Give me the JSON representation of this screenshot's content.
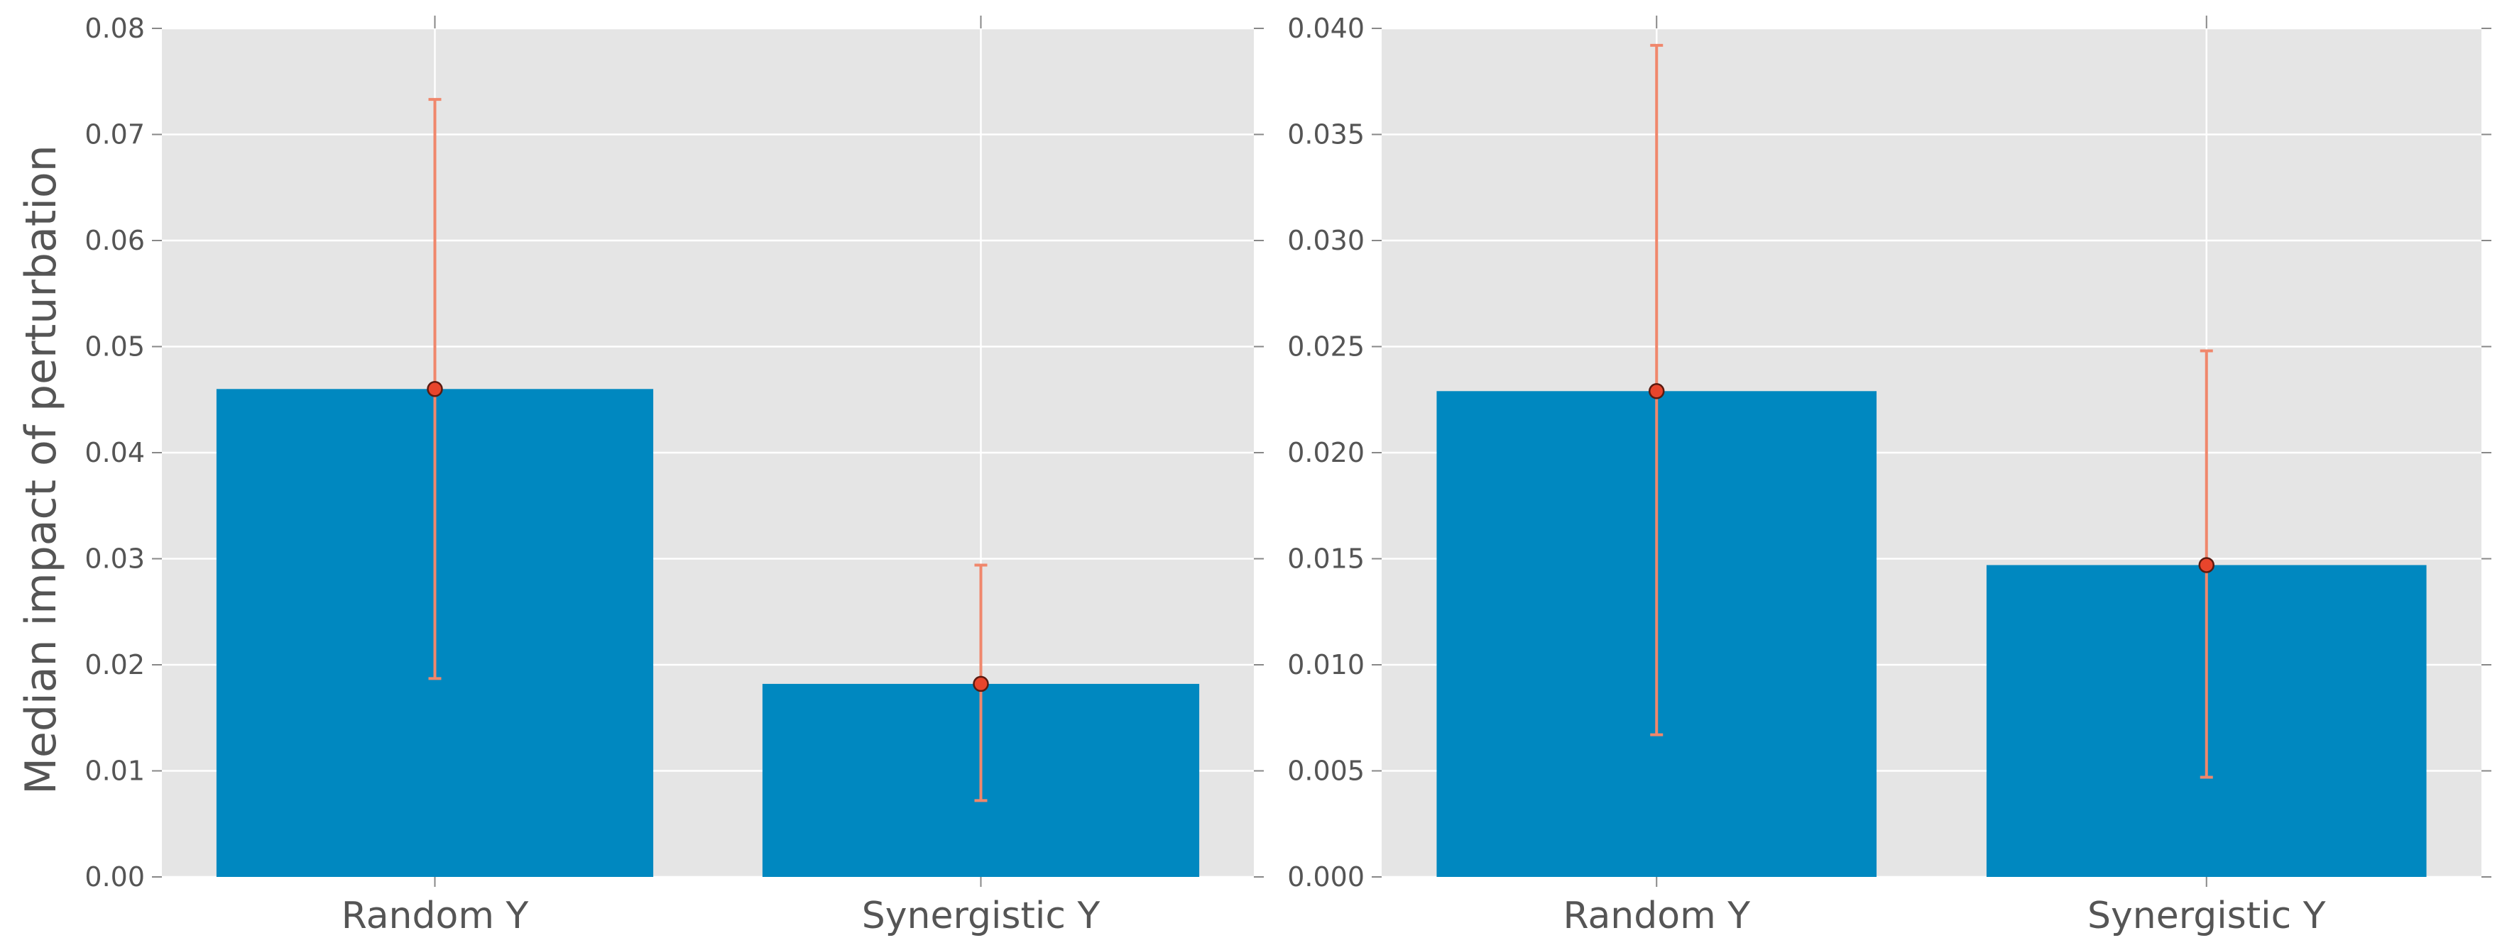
{
  "chart_data": [
    {
      "type": "bar",
      "categories": [
        "Random Y",
        "Synergistic Y"
      ],
      "values": [
        0.046,
        0.0182
      ],
      "error_low": [
        0.0187,
        0.0072
      ],
      "error_high": [
        0.0733,
        0.0294
      ],
      "ylabel": "Median impact of perturbation",
      "ylim": [
        0,
        0.08
      ],
      "yticks": [
        0.0,
        0.01,
        0.02,
        0.03,
        0.04,
        0.05,
        0.06,
        0.07,
        0.08
      ],
      "ytick_labels": [
        "0.00",
        "0.01",
        "0.02",
        "0.03",
        "0.04",
        "0.05",
        "0.06",
        "0.07",
        "0.08"
      ],
      "grid": true
    },
    {
      "type": "bar",
      "categories": [
        "Random Y",
        "Synergistic Y"
      ],
      "values": [
        0.0229,
        0.0147
      ],
      "error_low": [
        0.0067,
        0.0047
      ],
      "error_high": [
        0.0392,
        0.0248
      ],
      "ylabel": "",
      "ylim": [
        0,
        0.04
      ],
      "yticks": [
        0.0,
        0.005,
        0.01,
        0.015,
        0.02,
        0.025,
        0.03,
        0.035,
        0.04
      ],
      "ytick_labels": [
        "0.000",
        "0.005",
        "0.010",
        "0.015",
        "0.020",
        "0.025",
        "0.030",
        "0.035",
        "0.040"
      ],
      "grid": true
    }
  ],
  "colors": {
    "plot_background": "#e5e5e5",
    "grid": "#ffffff",
    "bar": "#0088c0",
    "error_bar": "#f0876c",
    "marker": "#e8452c",
    "marker_edge": "#5a1a10",
    "tick_text": "#555555",
    "label_text": "#555555"
  }
}
